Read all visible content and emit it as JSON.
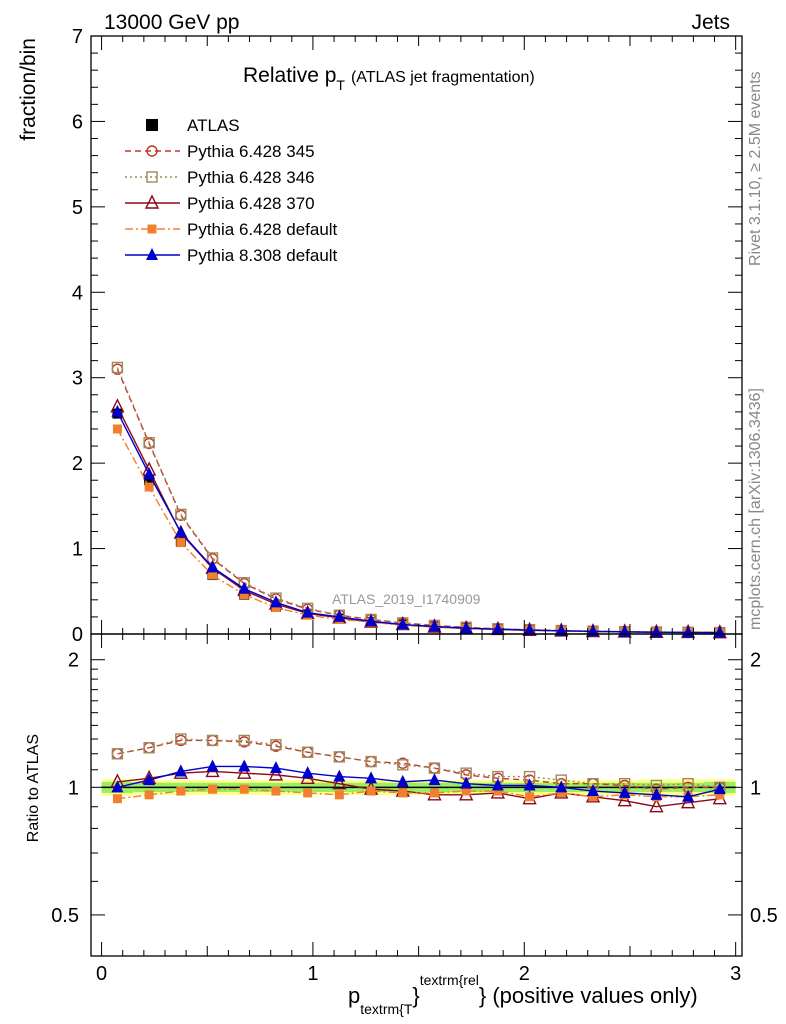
{
  "header": {
    "energy": "13000 GeV pp",
    "process": "Jets",
    "title_main": "Relative p",
    "title_sub": "T",
    "title_rest": "(ATLAS jet fragmentation)",
    "analysis_id": "ATLAS_2019_I1740909",
    "side_rivet": "Rivet 3.1.10, ≥ 2.5M events",
    "side_mcplots": "mcplots.cern.ch [arXiv:1306.3436]"
  },
  "axes": {
    "ylabel_main": "fraction/bin",
    "ylabel_ratio": "Ratio to ATLAS",
    "xlabel_p": "p",
    "xlabel_sub": "textrm{T",
    "xlabel_sup": "textrm{rel",
    "xlabel_tail": "} (positive values only)",
    "main_yticks": [
      "0",
      "1",
      "2",
      "3",
      "4",
      "5",
      "6",
      "7"
    ],
    "ratio_yticks": [
      "0.5",
      "1",
      "2"
    ],
    "xticks": [
      "0",
      "1",
      "2",
      "3"
    ]
  },
  "colors": {
    "atlas": "#000000",
    "p345": "#c0392b",
    "p346": "#a0895a",
    "p370": "#8b0a1a",
    "p6def": "#f08030",
    "p8def": "#0000cc",
    "band_inner": "#99ee66",
    "band_outer": "#ffff88"
  },
  "chart_data": {
    "type": "line",
    "x": [
      0.075,
      0.225,
      0.375,
      0.525,
      0.675,
      0.825,
      0.975,
      1.125,
      1.275,
      1.425,
      1.575,
      1.725,
      1.875,
      2.025,
      2.175,
      2.325,
      2.475,
      2.625,
      2.775,
      2.925
    ],
    "xlim": [
      -0.05,
      3.03
    ],
    "main_ylim": [
      0,
      7
    ],
    "ratio_ylim": [
      0.4,
      2.3
    ],
    "ratio_log_scale": true,
    "legend_position": "top-left",
    "series": [
      {
        "name": "ATLAS",
        "key": "atlas",
        "marker": "square-filled",
        "line": "none",
        "values": [
          2.58,
          1.8,
          1.08,
          0.69,
          0.46,
          0.32,
          0.23,
          0.18,
          0.14,
          0.11,
          0.085,
          0.068,
          0.055,
          0.045,
          0.037,
          0.031,
          0.026,
          0.022,
          0.019,
          0.017
        ],
        "ratio": [
          1,
          1,
          1,
          1,
          1,
          1,
          1,
          1,
          1,
          1,
          1,
          1,
          1,
          1,
          1,
          1,
          1,
          1,
          1,
          1
        ]
      },
      {
        "name": "Pythia 6.428 345",
        "key": "p345",
        "marker": "circle-open",
        "line": "dashed",
        "values": [
          3.1,
          2.23,
          1.39,
          0.88,
          0.59,
          0.41,
          0.29,
          0.22,
          0.17,
          0.13,
          0.1,
          0.078,
          0.06,
          0.049,
          0.039,
          0.032,
          0.026,
          0.022,
          0.019,
          0.017
        ],
        "ratio": [
          1.2,
          1.24,
          1.29,
          1.29,
          1.28,
          1.25,
          1.21,
          1.18,
          1.15,
          1.14,
          1.11,
          1.07,
          1.05,
          1.04,
          1.02,
          1.02,
          1.01,
          0.99,
          1.0,
          1.0
        ]
      },
      {
        "name": "Pythia 6.428 346",
        "key": "p346",
        "marker": "square-open",
        "line": "dotted",
        "values": [
          3.12,
          2.24,
          1.4,
          0.89,
          0.6,
          0.42,
          0.3,
          0.22,
          0.17,
          0.13,
          0.1,
          0.079,
          0.061,
          0.05,
          0.04,
          0.033,
          0.027,
          0.023,
          0.02,
          0.017
        ],
        "ratio": [
          1.2,
          1.24,
          1.3,
          1.29,
          1.29,
          1.26,
          1.21,
          1.18,
          1.15,
          1.13,
          1.11,
          1.08,
          1.06,
          1.06,
          1.04,
          1.02,
          1.02,
          1.01,
          1.02,
          1.0
        ]
      },
      {
        "name": "Pythia 6.428 370",
        "key": "p370",
        "marker": "triangle-open",
        "line": "solid",
        "values": [
          2.66,
          1.92,
          1.18,
          0.77,
          0.51,
          0.35,
          0.24,
          0.19,
          0.14,
          0.11,
          0.082,
          0.065,
          0.053,
          0.043,
          0.036,
          0.029,
          0.024,
          0.02,
          0.018,
          0.016
        ],
        "ratio": [
          1.03,
          1.05,
          1.08,
          1.09,
          1.08,
          1.07,
          1.05,
          1.02,
          0.99,
          0.98,
          0.96,
          0.96,
          0.97,
          0.94,
          0.97,
          0.95,
          0.93,
          0.9,
          0.92,
          0.94
        ]
      },
      {
        "name": "Pythia 6.428 default",
        "key": "p6def",
        "marker": "square-filled-small",
        "line": "dash-dot",
        "values": [
          2.4,
          1.72,
          1.07,
          0.69,
          0.46,
          0.31,
          0.22,
          0.17,
          0.14,
          0.1,
          0.081,
          0.065,
          0.053,
          0.042,
          0.036,
          0.029,
          0.025,
          0.021,
          0.018,
          0.016
        ],
        "ratio": [
          0.94,
          0.96,
          0.98,
          0.99,
          0.99,
          0.98,
          0.97,
          0.96,
          0.98,
          0.97,
          0.97,
          0.98,
          0.98,
          0.95,
          0.97,
          0.95,
          0.96,
          0.95,
          0.95,
          0.96
        ]
      },
      {
        "name": "Pythia 8.308 default",
        "key": "p8def",
        "marker": "triangle-filled",
        "line": "solid",
        "values": [
          2.6,
          1.87,
          1.19,
          0.78,
          0.53,
          0.37,
          0.25,
          0.2,
          0.15,
          0.11,
          0.088,
          0.068,
          0.056,
          0.046,
          0.037,
          0.031,
          0.025,
          0.021,
          0.018,
          0.017
        ],
        "ratio": [
          1.0,
          1.04,
          1.09,
          1.12,
          1.12,
          1.11,
          1.08,
          1.06,
          1.05,
          1.03,
          1.04,
          1.02,
          1.01,
          1.01,
          1.0,
          0.98,
          0.97,
          0.96,
          0.95,
          0.99
        ]
      }
    ],
    "band_inner_halfwidth": [
      0.03,
      0.025,
      0.025,
      0.025,
      0.025,
      0.025,
      0.025,
      0.025,
      0.025,
      0.025,
      0.025,
      0.025,
      0.025,
      0.025,
      0.025,
      0.025,
      0.025,
      0.025,
      0.025,
      0.03
    ],
    "band_outer_halfwidth": [
      0.045,
      0.04,
      0.04,
      0.04,
      0.04,
      0.04,
      0.04,
      0.04,
      0.04,
      0.04,
      0.04,
      0.04,
      0.04,
      0.04,
      0.04,
      0.04,
      0.04,
      0.045,
      0.045,
      0.045
    ]
  }
}
